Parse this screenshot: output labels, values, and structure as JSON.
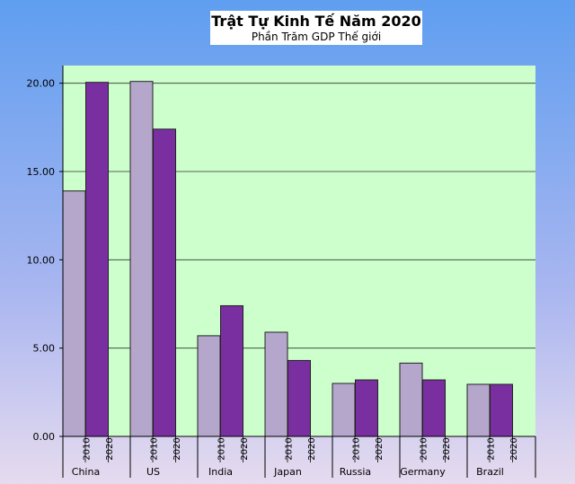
{
  "chart_data": {
    "type": "bar",
    "title": "Trật Tự Kinh Tế Năm 2020",
    "subtitle": "Phần Trăm GDP Thế giới",
    "categories": [
      "China",
      "US",
      "India",
      "Japan",
      "Russia",
      "Germany",
      "Brazil"
    ],
    "sub_labels": [
      "2010",
      "2020"
    ],
    "series": [
      {
        "name": "2010",
        "values": [
          13.9,
          20.1,
          5.7,
          5.9,
          3.0,
          4.15,
          2.95
        ],
        "color": "#b5a6cb"
      },
      {
        "name": "2020",
        "values": [
          20.05,
          17.4,
          7.4,
          4.3,
          3.2,
          3.2,
          2.95
        ],
        "color": "#7a2fa0"
      }
    ],
    "y_ticks": [
      "0.00",
      "5.00",
      "10.00",
      "15.00",
      "20.00"
    ],
    "ylim": [
      0,
      21
    ],
    "xlabel": "",
    "ylabel": "",
    "grid": true,
    "plot_background": "#ccffcc"
  }
}
